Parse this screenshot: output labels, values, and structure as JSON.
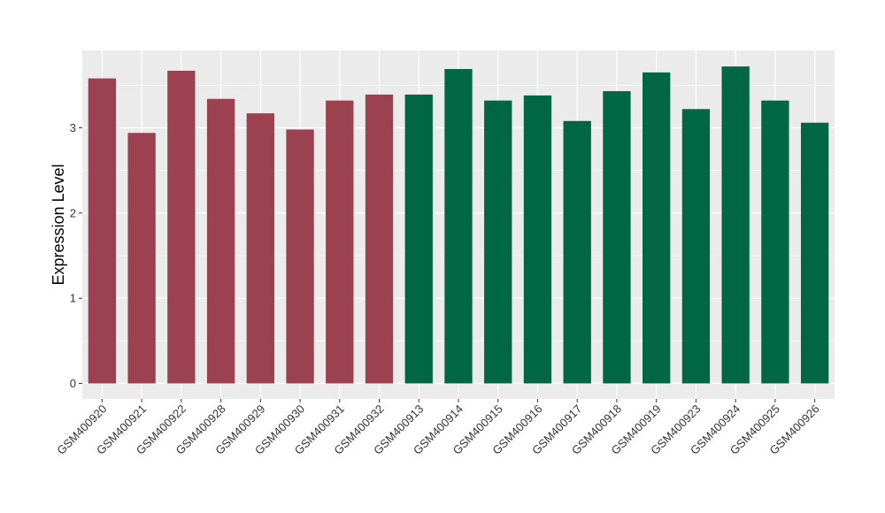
{
  "chart_data": {
    "type": "bar",
    "title": "",
    "xlabel": "",
    "ylabel": "Expression Level",
    "ylim": [
      -0.2,
      3.9
    ],
    "yticks": [
      0,
      1,
      2,
      3
    ],
    "grid": true,
    "legend": "none",
    "categories": [
      "GSM400920",
      "GSM400921",
      "GSM400922",
      "GSM400928",
      "GSM400929",
      "GSM400930",
      "GSM400931",
      "GSM400932",
      "GSM400913",
      "GSM400914",
      "GSM400915",
      "GSM400916",
      "GSM400917",
      "GSM400918",
      "GSM400919",
      "GSM400923",
      "GSM400924",
      "GSM400925",
      "GSM400926"
    ],
    "values": [
      3.58,
      2.94,
      3.67,
      3.34,
      3.17,
      2.98,
      3.32,
      3.39,
      3.39,
      3.69,
      3.32,
      3.38,
      3.08,
      3.43,
      3.65,
      3.22,
      3.72,
      3.32,
      3.06
    ],
    "bar_colors": [
      "#9b4150",
      "#9b4150",
      "#9b4150",
      "#9b4150",
      "#9b4150",
      "#9b4150",
      "#9b4150",
      "#9b4150",
      "#006644",
      "#006644",
      "#006644",
      "#006644",
      "#006644",
      "#006644",
      "#006644",
      "#006644",
      "#006644",
      "#006644",
      "#006644"
    ],
    "panel_background": "#ebebeb",
    "grid_color": "#ffffff"
  }
}
